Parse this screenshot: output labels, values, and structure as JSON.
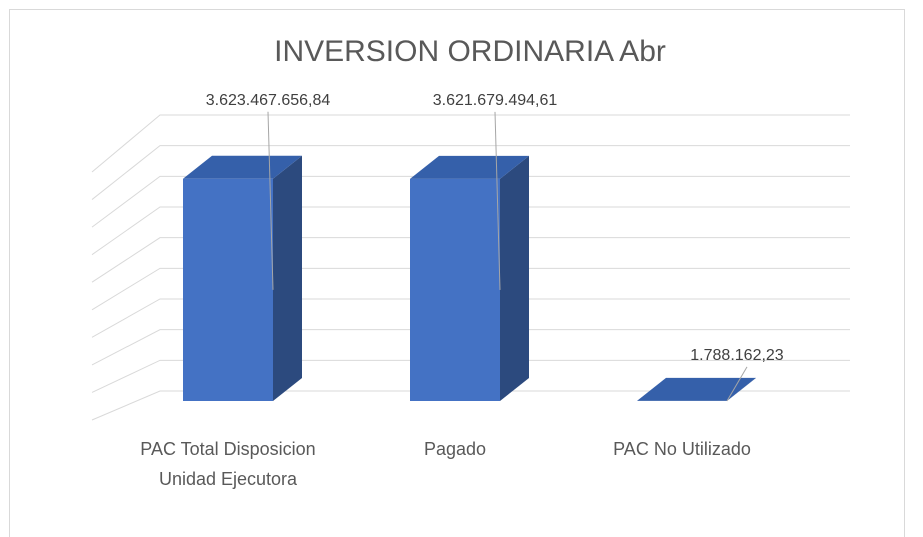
{
  "chart_data": {
    "type": "bar3d",
    "title": "INVERSION ORDINARIA Abr",
    "categories": [
      "PAC Total Disposicion Unidad Ejecutora",
      "Pagado",
      "PAC No Utilizado"
    ],
    "values": [
      3623467656.84,
      3621679494.61,
      1788162.23
    ],
    "value_labels": [
      "3.623.467.656,84",
      "3.621.679.494,61",
      "1.788.162,23"
    ],
    "color": "#4472c4",
    "ylim": [
      0,
      4500000000
    ],
    "yticks": [
      0,
      500000000,
      1000000000,
      1500000000,
      2000000000,
      2500000000,
      3000000000,
      3500000000,
      4000000000,
      4500000000
    ],
    "grid": true
  }
}
